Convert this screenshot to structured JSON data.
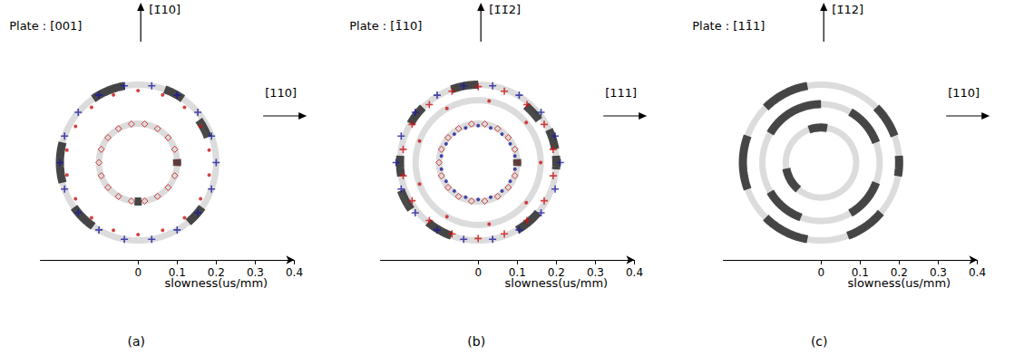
{
  "chart_data": [
    {
      "type": "scatter",
      "caption": "(a)",
      "plate": "Plate : [001]",
      "up_label": "[1̄10]",
      "right_label": "[110]",
      "x_label": "slowness(us/mm)",
      "xlim": [
        -0.25,
        0.4
      ],
      "ylim": [
        -0.25,
        0.25
      ],
      "xticks": [
        0,
        0.1,
        0.2,
        0.3,
        0.4
      ],
      "tick_labels": "x",
      "grid": false,
      "rings": [
        0.1,
        0.2
      ],
      "bands": [
        {
          "radius": 0.2,
          "start": 100,
          "end": 125
        },
        {
          "radius": 0.2,
          "start": 55,
          "end": 70
        },
        {
          "radius": 0.19,
          "start": 20,
          "end": 35
        },
        {
          "radius": 0.2,
          "start": -50,
          "end": -35
        },
        {
          "radius": 0.2,
          "start": -145,
          "end": -125
        },
        {
          "radius": 0.2,
          "start": 165,
          "end": 195
        },
        {
          "radius": 0.1,
          "start": -5,
          "end": 5
        },
        {
          "radius": 0.1,
          "start": 265,
          "end": 275
        }
      ],
      "series": [
        {
          "color": "#1a1a9c",
          "marker": "plus",
          "x": [
            0.2,
            0.188,
            0.153,
            0.1,
            0.035,
            -0.035,
            -0.1,
            -0.153,
            -0.188,
            -0.2,
            -0.188,
            -0.153,
            -0.1,
            -0.035,
            0.035,
            0.1,
            0.153,
            0.188
          ],
          "y": [
            0,
            0.068,
            0.129,
            0.173,
            0.197,
            0.197,
            0.173,
            0.129,
            0.068,
            0,
            -0.068,
            -0.129,
            -0.173,
            -0.197,
            -0.197,
            -0.173,
            -0.129,
            -0.068
          ]
        },
        {
          "color": "#cc1111",
          "marker": "dot",
          "x": [
            0.182,
            0.16,
            0.119,
            0.063,
            0,
            -0.063,
            -0.119,
            -0.16,
            -0.182,
            -0.182,
            -0.16,
            -0.119,
            -0.063,
            0,
            0.063,
            0.119,
            0.16,
            0.182
          ],
          "y": [
            0.032,
            0.093,
            0.142,
            0.174,
            0.185,
            0.174,
            0.142,
            0.093,
            0.032,
            -0.032,
            -0.093,
            -0.142,
            -0.174,
            -0.185,
            -0.174,
            -0.142,
            -0.093,
            -0.032
          ]
        },
        {
          "color": "#cc1111",
          "marker": "diamond",
          "x": [
            0.1,
            0.094,
            0.077,
            0.05,
            0.017,
            -0.017,
            -0.05,
            -0.077,
            -0.094,
            -0.1,
            -0.094,
            -0.077,
            -0.05,
            -0.017,
            0.017,
            0.05,
            0.077,
            0.094
          ],
          "y": [
            0,
            0.034,
            0.064,
            0.087,
            0.099,
            0.099,
            0.087,
            0.064,
            0.034,
            0,
            -0.034,
            -0.064,
            -0.087,
            -0.099,
            -0.099,
            -0.087,
            -0.064,
            -0.034
          ]
        }
      ]
    },
    {
      "type": "scatter",
      "caption": "(b)",
      "plate": "Plate : [1̄10]",
      "up_label": "[1̄1̄2]",
      "right_label": "[111]",
      "x_label": "slowness(us/mm)",
      "xlim": [
        -0.25,
        0.4
      ],
      "ylim": [
        -0.25,
        0.25
      ],
      "xticks": [
        0,
        0.1,
        0.2,
        0.3,
        0.4
      ],
      "tick_labels": "x",
      "grid": false,
      "rings": [
        0.1,
        0.16,
        0.2
      ],
      "bands": [
        {
          "radius": 0.2,
          "start": 90,
          "end": 110
        },
        {
          "radius": 0.2,
          "start": 135,
          "end": 150
        },
        {
          "radius": 0.2,
          "start": 175,
          "end": 190
        },
        {
          "radius": 0.21,
          "start": 200,
          "end": 215
        },
        {
          "radius": 0.2,
          "start": 230,
          "end": 250
        },
        {
          "radius": 0.2,
          "start": -60,
          "end": -40
        },
        {
          "radius": 0.2,
          "start": 10,
          "end": 25
        },
        {
          "radius": 0.2,
          "start": -5,
          "end": 5
        },
        {
          "radius": 0.19,
          "start": 35,
          "end": 50
        },
        {
          "radius": 0.1,
          "start": -5,
          "end": 5
        }
      ],
      "series": [
        {
          "color": "#1a1a9c",
          "marker": "plus",
          "x": [
            0.21,
            0.197,
            0.161,
            0.105,
            0.037,
            -0.037,
            -0.105,
            -0.161,
            -0.197,
            -0.21,
            -0.197,
            -0.161,
            -0.105,
            -0.037,
            0.037,
            0.105,
            0.161,
            0.197
          ],
          "y": [
            0,
            0.068,
            0.129,
            0.173,
            0.197,
            0.197,
            0.173,
            0.129,
            0.068,
            0,
            -0.068,
            -0.129,
            -0.173,
            -0.197,
            -0.197,
            -0.173,
            -0.129,
            -0.068
          ]
        },
        {
          "color": "#cc1111",
          "marker": "plus",
          "x": [
            0.192,
            0.169,
            0.125,
            0.067,
            0,
            -0.067,
            -0.125,
            -0.169,
            -0.192,
            -0.192,
            -0.169,
            -0.125,
            -0.067,
            0,
            0.067,
            0.125,
            0.169,
            0.192
          ],
          "y": [
            0.034,
            0.098,
            0.149,
            0.183,
            0.195,
            0.183,
            0.149,
            0.098,
            0.034,
            -0.034,
            -0.098,
            -0.149,
            -0.183,
            -0.195,
            -0.183,
            -0.149,
            -0.098,
            -0.034
          ]
        },
        {
          "color": "#cc1111",
          "marker": "dot",
          "x": [
            0.16,
            0.123,
            0.028,
            -0.08,
            -0.15,
            -0.15,
            -0.08,
            0.028,
            0.123
          ],
          "y": [
            0,
            0.103,
            0.158,
            0.139,
            0.055,
            -0.055,
            -0.139,
            -0.158,
            -0.103
          ]
        },
        {
          "color": "#cc1111",
          "marker": "diamond",
          "x": [
            0.1,
            0.094,
            0.077,
            0.05,
            0.017,
            -0.017,
            -0.05,
            -0.077,
            -0.094,
            -0.1,
            -0.094,
            -0.077,
            -0.05,
            -0.017,
            0.017,
            0.05,
            0.077,
            0.094
          ],
          "y": [
            0,
            0.034,
            0.064,
            0.087,
            0.099,
            0.099,
            0.087,
            0.064,
            0.034,
            0,
            -0.034,
            -0.064,
            -0.087,
            -0.099,
            -0.099,
            -0.087,
            -0.064,
            -0.034
          ]
        },
        {
          "color": "#1a1a9c",
          "marker": "dot",
          "x": [
            0.094,
            0.082,
            0.061,
            0.032,
            0,
            -0.032,
            -0.061,
            -0.082,
            -0.094,
            -0.094,
            -0.082,
            -0.061,
            -0.032,
            0,
            0.032,
            0.061,
            0.082,
            0.094
          ],
          "y": [
            0.017,
            0.048,
            0.073,
            0.089,
            0.095,
            0.089,
            0.073,
            0.048,
            0.017,
            -0.017,
            -0.048,
            -0.073,
            -0.089,
            -0.095,
            -0.089,
            -0.073,
            -0.048,
            -0.017
          ]
        }
      ]
    },
    {
      "type": "scatter",
      "caption": "(c)",
      "plate": "Plate : [11̄1]",
      "up_label": "[1̄12]",
      "right_label": "[110]",
      "x_label": "slowness(us/mm)",
      "xlim": [
        -0.25,
        0.4
      ],
      "ylim": [
        -0.25,
        0.25
      ],
      "xticks": [
        0,
        0.1,
        0.2,
        0.3,
        0.4
      ],
      "tick_labels": "x",
      "grid": false,
      "rings": [
        0.09,
        0.15,
        0.2
      ],
      "bands": [
        {
          "radius": 0.2,
          "start": 100,
          "end": 135
        },
        {
          "radius": 0.2,
          "start": 160,
          "end": 200
        },
        {
          "radius": 0.2,
          "start": 225,
          "end": 260
        },
        {
          "radius": 0.2,
          "start": 290,
          "end": 320
        },
        {
          "radius": 0.2,
          "start": 20,
          "end": 45
        },
        {
          "radius": 0.2,
          "start": -10,
          "end": 5
        },
        {
          "radius": 0.15,
          "start": 90,
          "end": 150
        },
        {
          "radius": 0.15,
          "start": 210,
          "end": 250
        },
        {
          "radius": 0.15,
          "start": 300,
          "end": 340
        },
        {
          "radius": 0.15,
          "start": 20,
          "end": 60
        },
        {
          "radius": 0.09,
          "start": 80,
          "end": 110
        },
        {
          "radius": 0.09,
          "start": 190,
          "end": 230
        }
      ],
      "series": []
    }
  ]
}
